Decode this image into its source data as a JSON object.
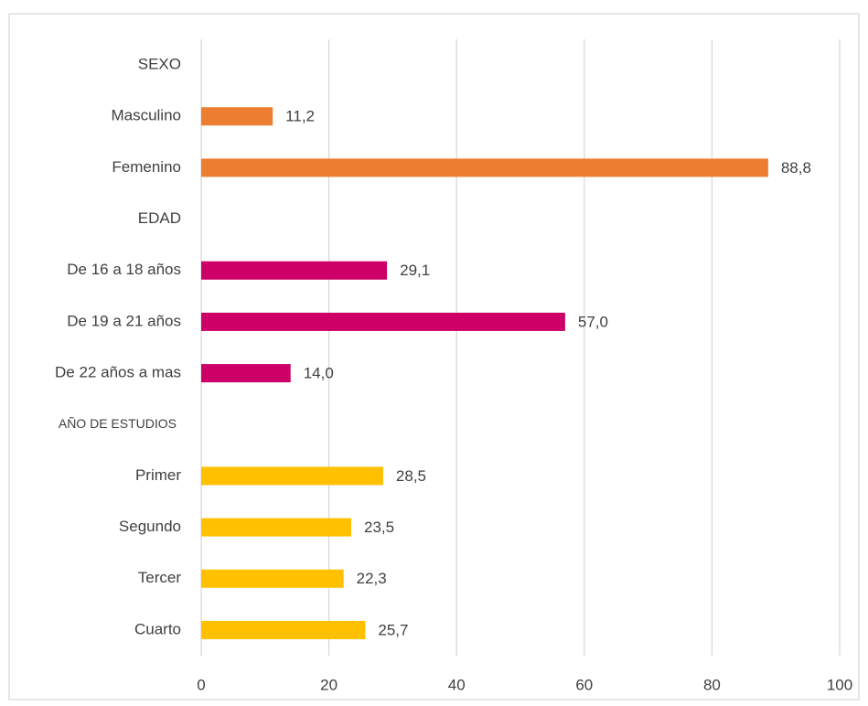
{
  "chart_data": {
    "type": "barh",
    "categories": [
      "SEXO",
      "Masculino",
      "Femenino",
      "EDAD",
      "De 16 a 18 años",
      "De 19 a 21 años",
      "De 22 años a mas",
      "AÑO DE ESTUDIOS",
      "Primer",
      "Segundo",
      "Tercer",
      "Cuarto"
    ],
    "values": [
      null,
      11.2,
      88.8,
      null,
      29.1,
      57.0,
      14.0,
      null,
      28.5,
      23.5,
      22.3,
      25.7
    ],
    "value_labels": [
      null,
      "11,2",
      "88,8",
      null,
      "29,1",
      "57,0",
      "14,0",
      null,
      "28,5",
      "23,5",
      "22,3",
      "25,7"
    ],
    "colors": [
      null,
      "#ed7d31",
      "#ed7d31",
      null,
      "#cc0066",
      "#cc0066",
      "#cc0066",
      null,
      "#ffc000",
      "#ffc000",
      "#ffc000",
      "#ffc000"
    ],
    "xlim": [
      0,
      100
    ],
    "xticks": [
      0,
      20,
      40,
      60,
      80,
      100
    ],
    "grid": true
  }
}
